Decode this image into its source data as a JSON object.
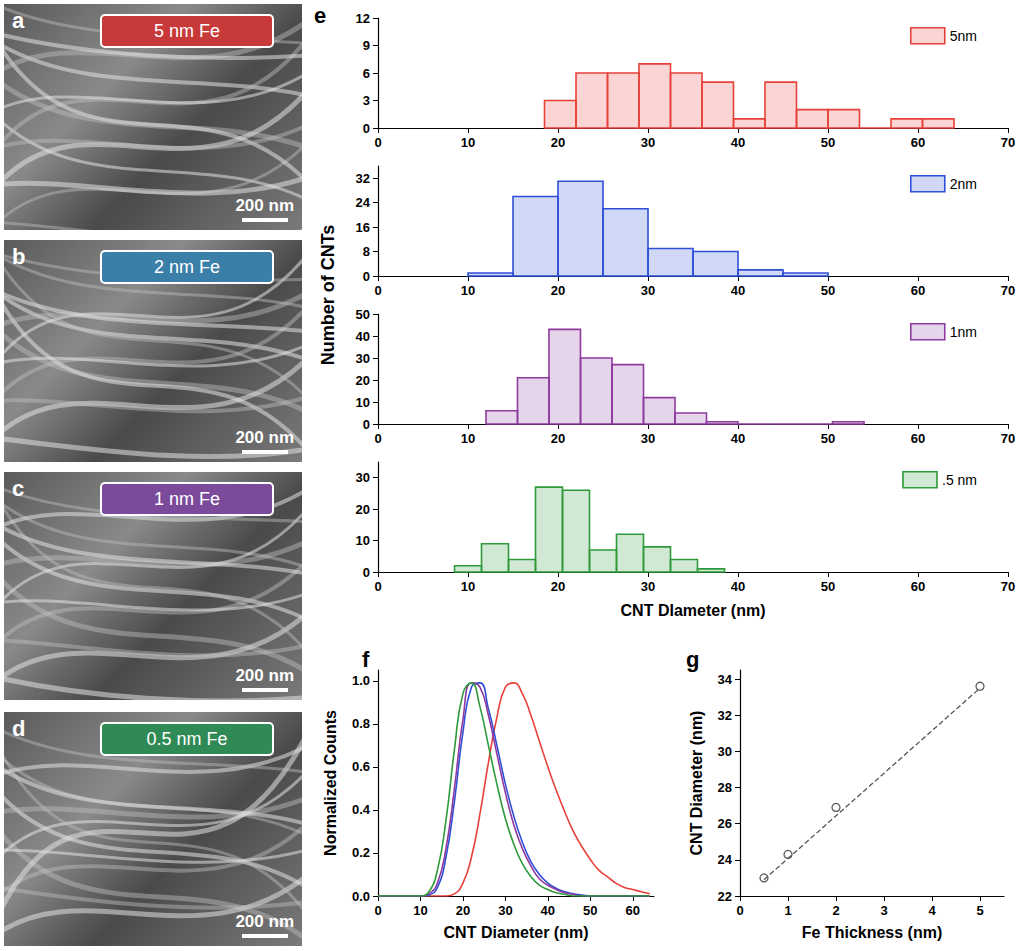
{
  "images": [
    {
      "panel": "a",
      "label": "5 nm Fe",
      "color": "#c8393a",
      "scale_bar": "200 nm"
    },
    {
      "panel": "b",
      "label": "2 nm Fe",
      "color": "#3a7fa8",
      "scale_bar": "200 nm"
    },
    {
      "panel": "c",
      "label": "1 nm Fe",
      "color": "#7b4a9a",
      "scale_bar": "200 nm"
    },
    {
      "panel": "d",
      "label": "0.5 nm Fe",
      "color": "#2f8a55",
      "scale_bar": "200 nm"
    }
  ],
  "chart_data": [
    {
      "panel": "e",
      "type": "histogram",
      "xlabel": "CNT DIameter (nm)",
      "ylabel": "Number of CNTs",
      "xlim": [
        0,
        70
      ],
      "xticks": [
        0,
        10,
        20,
        30,
        40,
        50,
        60,
        70
      ],
      "series": [
        {
          "name": "5nm",
          "color": "#e8413a",
          "bins": [
            18.5,
            22,
            25.5,
            29,
            32.5,
            36,
            39.5,
            43,
            46.5,
            50,
            53.5,
            57,
            60.5,
            64
          ],
          "counts": [
            3,
            6,
            6,
            7,
            6,
            5,
            1,
            5,
            2,
            2,
            0,
            1,
            1
          ],
          "ylim": [
            0,
            12
          ],
          "yticks": [
            0,
            3,
            6,
            9,
            12
          ]
        },
        {
          "name": "2nm",
          "color": "#2e4fd8",
          "bins": [
            10,
            15,
            20,
            25,
            30,
            35,
            40,
            45,
            50
          ],
          "counts": [
            1,
            26,
            31,
            22,
            9,
            8,
            2,
            1
          ],
          "ylim": [
            0,
            36
          ],
          "yticks": [
            0,
            8,
            16,
            24,
            32
          ]
        },
        {
          "name": "1nm",
          "color": "#8e3a9e",
          "bins": [
            12,
            15.5,
            19,
            22.5,
            26,
            29.5,
            33,
            36.5,
            40,
            43.5,
            47,
            50.5,
            54
          ],
          "counts": [
            6,
            21,
            43,
            30,
            27,
            12,
            5,
            1,
            0,
            0,
            0,
            1
          ],
          "ylim": [
            0,
            50
          ],
          "yticks": [
            0,
            10,
            20,
            30,
            40,
            50
          ]
        },
        {
          "name": ".5 nm",
          "color": "#2e9a3a",
          "bins": [
            8.5,
            11.5,
            14.5,
            17.5,
            20.5,
            23.5,
            26.5,
            29.5,
            32.5,
            35.5,
            38.5
          ],
          "counts": [
            2,
            9,
            4,
            27,
            26,
            7,
            12,
            8,
            4,
            1
          ],
          "ylim": [
            0,
            35
          ],
          "yticks": [
            0,
            10,
            20,
            30
          ]
        }
      ]
    },
    {
      "panel": "f",
      "type": "line",
      "xlabel": "CNT Diameter (nm)",
      "ylabel": "Normalized Counts",
      "xlim": [
        0,
        65
      ],
      "xticks": [
        0,
        10,
        20,
        30,
        40,
        50,
        60
      ],
      "ylim": [
        0,
        1.05
      ],
      "yticks": [
        {
          "value": 0,
          "label": "0.0"
        },
        {
          "value": 0.2,
          "label": "0.2"
        },
        {
          "value": 0.4,
          "label": "0.4"
        },
        {
          "value": 0.6,
          "label": "0.6"
        },
        {
          "value": 0.8,
          "label": "0.8"
        },
        {
          "value": 1,
          "label": "1.0"
        }
      ],
      "x": [
        0,
        2,
        4,
        6,
        8,
        10,
        12,
        14,
        16,
        18,
        20,
        22,
        24,
        26,
        28,
        30,
        32,
        34,
        36,
        38,
        40,
        42,
        44,
        46,
        48,
        50,
        52,
        54,
        56,
        58,
        60,
        62,
        64
      ],
      "series": [
        {
          "color": "#e8413a",
          "values": [
            0,
            0,
            0,
            0,
            0,
            0,
            0,
            0,
            0,
            0.01,
            0.06,
            0.18,
            0.38,
            0.62,
            0.83,
            0.97,
            0.99,
            0.94,
            0.84,
            0.72,
            0.6,
            0.49,
            0.39,
            0.3,
            0.23,
            0.17,
            0.12,
            0.09,
            0.06,
            0.04,
            0.03,
            0.02,
            0.01
          ]
        },
        {
          "color": "#2e4fd8",
          "values": [
            0,
            0,
            0,
            0,
            0,
            0,
            0.005,
            0.04,
            0.18,
            0.44,
            0.76,
            0.97,
            0.99,
            0.87,
            0.7,
            0.52,
            0.37,
            0.25,
            0.16,
            0.1,
            0.06,
            0.035,
            0.02,
            0.01,
            0.005,
            0,
            0,
            0,
            0,
            0,
            0,
            0,
            0
          ]
        },
        {
          "color": "#8e3a9e",
          "values": [
            0,
            0,
            0,
            0,
            0,
            0,
            0.01,
            0.06,
            0.22,
            0.5,
            0.82,
            0.99,
            0.97,
            0.84,
            0.66,
            0.48,
            0.33,
            0.22,
            0.14,
            0.08,
            0.05,
            0.03,
            0.015,
            0.008,
            0,
            0,
            0,
            0,
            0,
            0,
            0,
            0,
            0
          ]
        },
        {
          "color": "#2e9a3a",
          "values": [
            0,
            0,
            0,
            0,
            0,
            0,
            0.02,
            0.12,
            0.35,
            0.68,
            0.94,
            0.99,
            0.88,
            0.7,
            0.52,
            0.36,
            0.24,
            0.15,
            0.09,
            0.05,
            0.03,
            0.015,
            0.008,
            0,
            0,
            0,
            0,
            0,
            0,
            0,
            0,
            0,
            0
          ]
        }
      ]
    },
    {
      "panel": "g",
      "type": "scatter",
      "xlabel": "Fe Thickness (nm)",
      "ylabel": "CNT Diameter (nm)",
      "xlim": [
        0,
        5.5
      ],
      "xticks": [
        0,
        1,
        2,
        3,
        4,
        5
      ],
      "ylim": [
        22,
        34.5
      ],
      "yticks": [
        22,
        24,
        26,
        28,
        30,
        32,
        34
      ],
      "x": [
        0.5,
        1,
        2,
        5
      ],
      "values": [
        23.0,
        24.3,
        26.9,
        33.6
      ],
      "marker": "open circle",
      "color": "#333333",
      "fit": {
        "x": [
          0.5,
          5
        ],
        "values": [
          22.9,
          33.5
        ],
        "line_style": "dashed"
      }
    }
  ]
}
